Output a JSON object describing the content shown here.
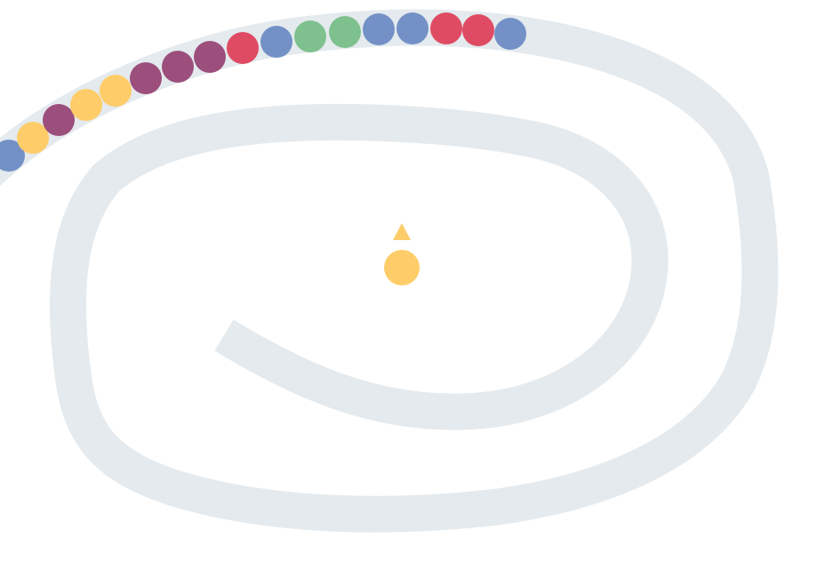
{
  "game": {
    "type": "marble-chain-shooter",
    "colors": {
      "track": "#e4eaee",
      "background": "#ffffff",
      "blue": "#7391c6",
      "yellow": "#fecd69",
      "purple": "#9c4f7c",
      "red": "#df4b63",
      "green": "#7fc18e"
    },
    "chain": [
      "blue",
      "yellow",
      "purple",
      "yellow",
      "yellow",
      "purple",
      "purple",
      "purple",
      "red",
      "blue",
      "green",
      "green",
      "blue",
      "blue",
      "red",
      "red",
      "blue"
    ],
    "shooter": {
      "loaded_ball": "yellow",
      "aim_icon": "triangle-up-icon"
    }
  }
}
